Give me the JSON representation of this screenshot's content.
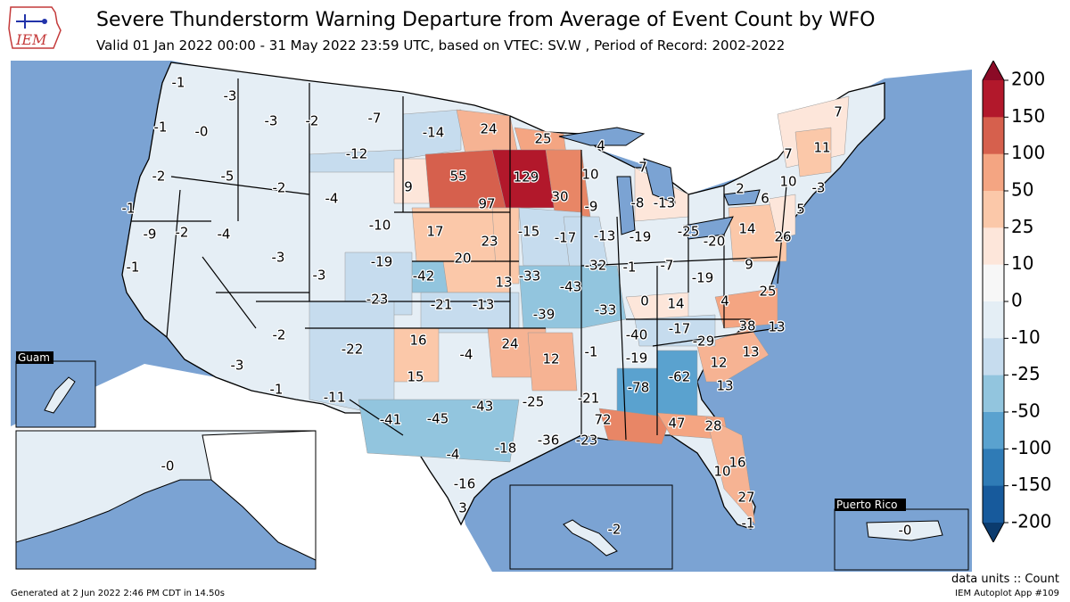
{
  "header": {
    "logo_text": "IEM",
    "title": "Severe Thunderstorm Warning Departure from Average of Event Count by WFO",
    "subtitle": "Valid 01 Jan 2022 00:00 - 31 May 2022 23:59 UTC, based on VTEC: SV.W  , Period of Record: 2002-2022"
  },
  "insets": {
    "guam": "Guam",
    "puerto_rico": "Puerto Rico"
  },
  "colorbar": {
    "ticks": [
      "200",
      "150",
      "100",
      "50",
      "25",
      "10",
      "0",
      "-10",
      "-25",
      "-50",
      "-100",
      "-150",
      "-200"
    ],
    "colors": [
      "#8b0a26",
      "#b2182b",
      "#d6604d",
      "#f4a582",
      "#fbc8a9",
      "#fde6da",
      "#f7f7f7",
      "#e4eef5",
      "#c6dcee",
      "#92c5de",
      "#5aa2cf",
      "#2f7bb6",
      "#175a9c",
      "#0b3b6e"
    ]
  },
  "map_colors": {
    "ocean": "#7ba3d3",
    "land_outside": "#ffffff"
  },
  "wfo_values": [
    {
      "v": "-1"
    },
    {
      "v": "-3"
    },
    {
      "v": "-3"
    },
    {
      "v": "-2"
    },
    {
      "v": "-7"
    },
    {
      "v": "-1"
    },
    {
      "v": "-0"
    },
    {
      "v": "-14"
    },
    {
      "v": "24"
    },
    {
      "v": "25"
    },
    {
      "v": "7"
    },
    {
      "v": "-12"
    },
    {
      "v": "-2"
    },
    {
      "v": "-5"
    },
    {
      "v": "-2"
    },
    {
      "v": "-4"
    },
    {
      "v": "9"
    },
    {
      "v": "55"
    },
    {
      "v": "129"
    },
    {
      "v": "10"
    },
    {
      "v": "4"
    },
    {
      "v": "7"
    },
    {
      "v": "11"
    },
    {
      "v": "7"
    },
    {
      "v": "-1"
    },
    {
      "v": "-9"
    },
    {
      "v": "-2"
    },
    {
      "v": "-4"
    },
    {
      "v": "-10"
    },
    {
      "v": "97"
    },
    {
      "v": "30"
    },
    {
      "v": "-9"
    },
    {
      "v": "-8"
    },
    {
      "v": "-13"
    },
    {
      "v": "2"
    },
    {
      "v": "6"
    },
    {
      "v": "10"
    },
    {
      "v": "-3"
    },
    {
      "v": "5"
    },
    {
      "v": "-1"
    },
    {
      "v": "-3"
    },
    {
      "v": "17"
    },
    {
      "v": "23"
    },
    {
      "v": "-15"
    },
    {
      "v": "-17"
    },
    {
      "v": "-13"
    },
    {
      "v": "-19"
    },
    {
      "v": "-25"
    },
    {
      "v": "-20"
    },
    {
      "v": "14"
    },
    {
      "v": "26"
    },
    {
      "v": "-7"
    },
    {
      "v": "-1"
    },
    {
      "v": "-19"
    },
    {
      "v": "-42"
    },
    {
      "v": "20"
    },
    {
      "v": "-33"
    },
    {
      "v": "-32"
    },
    {
      "v": "-1"
    },
    {
      "v": "-7"
    },
    {
      "v": "9"
    },
    {
      "v": "-23"
    },
    {
      "v": "-21"
    },
    {
      "v": "-13"
    },
    {
      "v": "13"
    },
    {
      "v": "-43"
    },
    {
      "v": "-19"
    },
    {
      "v": "25"
    },
    {
      "v": "-3"
    },
    {
      "v": "-39"
    },
    {
      "v": "-33"
    },
    {
      "v": "0"
    },
    {
      "v": "14"
    },
    {
      "v": "4"
    },
    {
      "v": "38"
    },
    {
      "v": "13"
    },
    {
      "v": "-2"
    },
    {
      "v": "-22"
    },
    {
      "v": "16"
    },
    {
      "v": "-4"
    },
    {
      "v": "24"
    },
    {
      "v": "-40"
    },
    {
      "v": "-17"
    },
    {
      "v": "-29"
    },
    {
      "v": "12"
    },
    {
      "v": "-1"
    },
    {
      "v": "-19"
    },
    {
      "v": "13"
    },
    {
      "v": "12"
    },
    {
      "v": "-3"
    },
    {
      "v": "-1"
    },
    {
      "v": "15"
    },
    {
      "v": "-78"
    },
    {
      "v": "-62"
    },
    {
      "v": "13"
    },
    {
      "v": "-11"
    },
    {
      "v": "-21"
    },
    {
      "v": "-41"
    },
    {
      "v": "-45"
    },
    {
      "v": "-43"
    },
    {
      "v": "-25"
    },
    {
      "v": "72"
    },
    {
      "v": "47"
    },
    {
      "v": "28"
    },
    {
      "v": "-36"
    },
    {
      "v": "-23"
    },
    {
      "v": "-18"
    },
    {
      "v": "-4"
    },
    {
      "v": "16"
    },
    {
      "v": "10"
    },
    {
      "v": "-16"
    },
    {
      "v": "27"
    },
    {
      "v": "3"
    },
    {
      "v": "-1"
    },
    {
      "v": "-0"
    },
    {
      "v": "-2"
    },
    {
      "v": "-0"
    }
  ],
  "footer": {
    "units": "data units :: Count",
    "generated": "Generated at 2 Jun 2022 2:46 PM CDT in 14.50s",
    "app": "IEM Autoplot App #109"
  }
}
